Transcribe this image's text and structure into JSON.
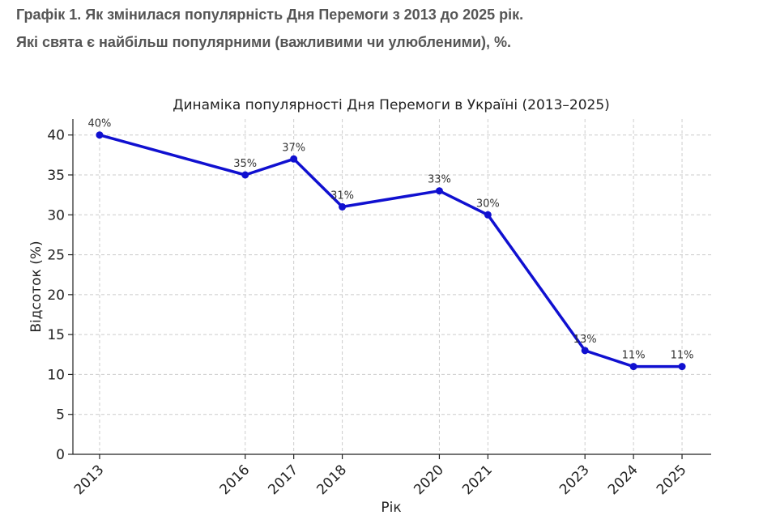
{
  "header": {
    "line1": "Графік 1.  Як змінилася популярність Дня Перемоги з 2013 до 2025 рік.",
    "line2": "Які свята є найбільш популярними (важливими чи улюбленими), %."
  },
  "chart_data": {
    "type": "line",
    "title": "Динаміка популярності Дня Перемоги в Україні (2013–2025)",
    "xlabel": "Рік",
    "ylabel": "Відсоток (%)",
    "x": [
      2013,
      2016,
      2017,
      2018,
      2020,
      2021,
      2023,
      2024,
      2025
    ],
    "x_tick_labels": [
      "2013",
      "2016",
      "2017",
      "2018",
      "2020",
      "2021",
      "2023",
      "2024",
      "2025"
    ],
    "series": [
      {
        "values": [
          40,
          35,
          37,
          31,
          33,
          30,
          13,
          11,
          11
        ],
        "data_labels": [
          "40%",
          "35%",
          "37%",
          "31%",
          "33%",
          "30%",
          "13%",
          "11%",
          "11%"
        ],
        "color": "#1010d0"
      }
    ],
    "ylim": [
      0,
      42
    ],
    "y_ticks": [
      0,
      5,
      10,
      15,
      20,
      25,
      30,
      35,
      40
    ],
    "y_tick_labels": [
      "0",
      "5",
      "10",
      "15",
      "20",
      "25",
      "30",
      "35",
      "40"
    ],
    "grid": true
  }
}
